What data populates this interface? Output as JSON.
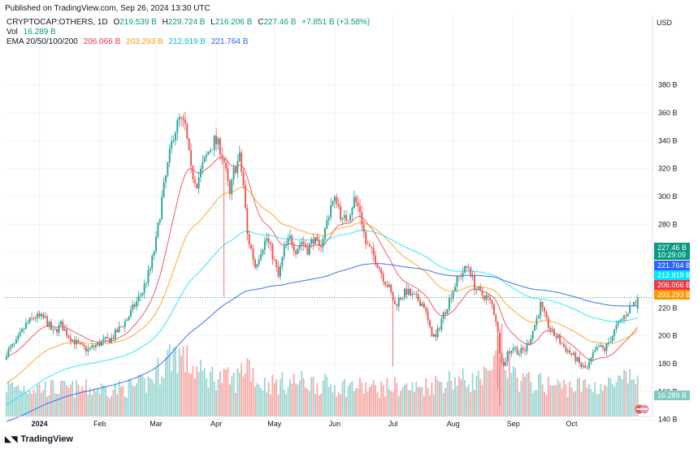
{
  "header": {
    "published": "Published on TradingView.com, Sep 26, 2024 13:30 UTC",
    "currency": "USD"
  },
  "legend": {
    "symbol": "CRYPTOCAP:OTHERS, 1D",
    "ohlc": [
      {
        "k": "O",
        "v": "219.539 B"
      },
      {
        "k": "H",
        "v": "229.724 B"
      },
      {
        "k": "L",
        "v": "216.206 B"
      },
      {
        "k": "C",
        "v": "227.46 B"
      }
    ],
    "change": "+7.851 B (+3.58%)",
    "vol_label": "Vol",
    "vol_value": "16.289 B",
    "ema_label": "EMA 20/50/100/200",
    "ema_values": [
      "206.066 B",
      "203.293 B",
      "212.919 B",
      "221.764 B"
    ]
  },
  "footer": {
    "brand": "TradingView"
  },
  "chart_data": {
    "type": "candlestick",
    "unit": "B USD",
    "x_ticks": [
      "2024",
      "Feb",
      "Mar",
      "Apr",
      "May",
      "Jun",
      "Jul",
      "Aug",
      "Sep",
      "Oct"
    ],
    "x_tick_index": [
      17,
      48,
      77,
      108,
      138,
      169,
      199,
      230,
      261,
      291
    ],
    "y_ticks": [
      "140 B",
      "160 B",
      "180 B",
      "200 B",
      "220 B",
      "240 B",
      "260 B",
      "280 B",
      "300 B",
      "320 B",
      "340 B",
      "360 B",
      "380 B"
    ],
    "ylim": [
      128,
      388
    ],
    "close_anchors": [
      [
        0,
        188
      ],
      [
        5,
        195
      ],
      [
        10,
        208
      ],
      [
        15,
        214
      ],
      [
        20,
        212
      ],
      [
        24,
        202
      ],
      [
        28,
        208
      ],
      [
        32,
        200
      ],
      [
        35,
        196
      ],
      [
        38,
        192
      ],
      [
        42,
        190
      ],
      [
        46,
        193
      ],
      [
        50,
        196
      ],
      [
        54,
        198
      ],
      [
        58,
        205
      ],
      [
        62,
        212
      ],
      [
        66,
        222
      ],
      [
        70,
        232
      ],
      [
        74,
        248
      ],
      [
        77,
        268
      ],
      [
        80,
        298
      ],
      [
        83,
        322
      ],
      [
        86,
        345
      ],
      [
        89,
        355
      ],
      [
        92,
        350
      ],
      [
        95,
        318
      ],
      [
        98,
        310
      ],
      [
        101,
        322
      ],
      [
        104,
        332
      ],
      [
        107,
        340
      ],
      [
        110,
        335
      ],
      [
        112,
        325
      ],
      [
        115,
        300
      ],
      [
        117,
        318
      ],
      [
        120,
        328
      ],
      [
        122,
        308
      ],
      [
        124,
        272
      ],
      [
        126,
        262
      ],
      [
        128,
        250
      ],
      [
        131,
        262
      ],
      [
        134,
        270
      ],
      [
        137,
        258
      ],
      [
        140,
        242
      ],
      [
        143,
        262
      ],
      [
        146,
        270
      ],
      [
        149,
        262
      ],
      [
        152,
        268
      ],
      [
        155,
        262
      ],
      [
        158,
        270
      ],
      [
        161,
        262
      ],
      [
        164,
        276
      ],
      [
        167,
        294
      ],
      [
        170,
        298
      ],
      [
        173,
        282
      ],
      [
        176,
        286
      ],
      [
        179,
        298
      ],
      [
        182,
        290
      ],
      [
        185,
        266
      ],
      [
        188,
        260
      ],
      [
        191,
        252
      ],
      [
        194,
        242
      ],
      [
        197,
        234
      ],
      [
        200,
        222
      ],
      [
        203,
        228
      ],
      [
        206,
        232
      ],
      [
        209,
        228
      ],
      [
        212,
        226
      ],
      [
        215,
        222
      ],
      [
        218,
        204
      ],
      [
        221,
        198
      ],
      [
        224,
        212
      ],
      [
        227,
        222
      ],
      [
        229,
        230
      ],
      [
        232,
        240
      ],
      [
        235,
        246
      ],
      [
        238,
        250
      ],
      [
        241,
        236
      ],
      [
        244,
        230
      ],
      [
        247,
        228
      ],
      [
        250,
        222
      ],
      [
        252,
        212
      ],
      [
        254,
        190
      ],
      [
        256,
        178
      ],
      [
        258,
        188
      ],
      [
        261,
        192
      ],
      [
        264,
        188
      ],
      [
        267,
        190
      ],
      [
        270,
        200
      ],
      [
        273,
        212
      ],
      [
        275,
        222
      ],
      [
        278,
        210
      ],
      [
        281,
        202
      ],
      [
        284,
        198
      ],
      [
        287,
        192
      ],
      [
        290,
        188
      ],
      [
        293,
        184
      ],
      [
        296,
        178
      ],
      [
        299,
        176
      ],
      [
        302,
        186
      ],
      [
        305,
        192
      ],
      [
        308,
        190
      ],
      [
        311,
        198
      ],
      [
        314,
        206
      ],
      [
        317,
        212
      ],
      [
        320,
        218
      ],
      [
        322,
        222
      ],
      [
        325,
        227.46
      ]
    ],
    "volume_anchors": [
      [
        0,
        12
      ],
      [
        30,
        11
      ],
      [
        60,
        11
      ],
      [
        72,
        13
      ],
      [
        77,
        17
      ],
      [
        82,
        22
      ],
      [
        86,
        26
      ],
      [
        90,
        24
      ],
      [
        95,
        20
      ],
      [
        100,
        17
      ],
      [
        106,
        16
      ],
      [
        112,
        15
      ],
      [
        118,
        14
      ],
      [
        124,
        22
      ],
      [
        130,
        13
      ],
      [
        140,
        13
      ],
      [
        150,
        14
      ],
      [
        160,
        13
      ],
      [
        170,
        12
      ],
      [
        180,
        12
      ],
      [
        190,
        11
      ],
      [
        200,
        12
      ],
      [
        210,
        11
      ],
      [
        220,
        13
      ],
      [
        230,
        15
      ],
      [
        240,
        14
      ],
      [
        250,
        16
      ],
      [
        254,
        30
      ],
      [
        258,
        20
      ],
      [
        265,
        14
      ],
      [
        275,
        13
      ],
      [
        285,
        12
      ],
      [
        295,
        12
      ],
      [
        305,
        12
      ],
      [
        315,
        13
      ],
      [
        325,
        16.289
      ]
    ],
    "ema20_at_last": 206.066,
    "ema50_at_last": 203.293,
    "ema100_at_last": 212.919,
    "ema200_at_last": 221.764,
    "last_close": 227.46,
    "countdown": "10:29:09",
    "last_volume": 16.289,
    "colors": {
      "up": "#26a69a",
      "down": "#ef5350",
      "ema20": "#f23645",
      "ema50": "#ff9800",
      "ema100": "#00e5ff",
      "ema200": "#2962ff",
      "last": "#089981"
    }
  }
}
